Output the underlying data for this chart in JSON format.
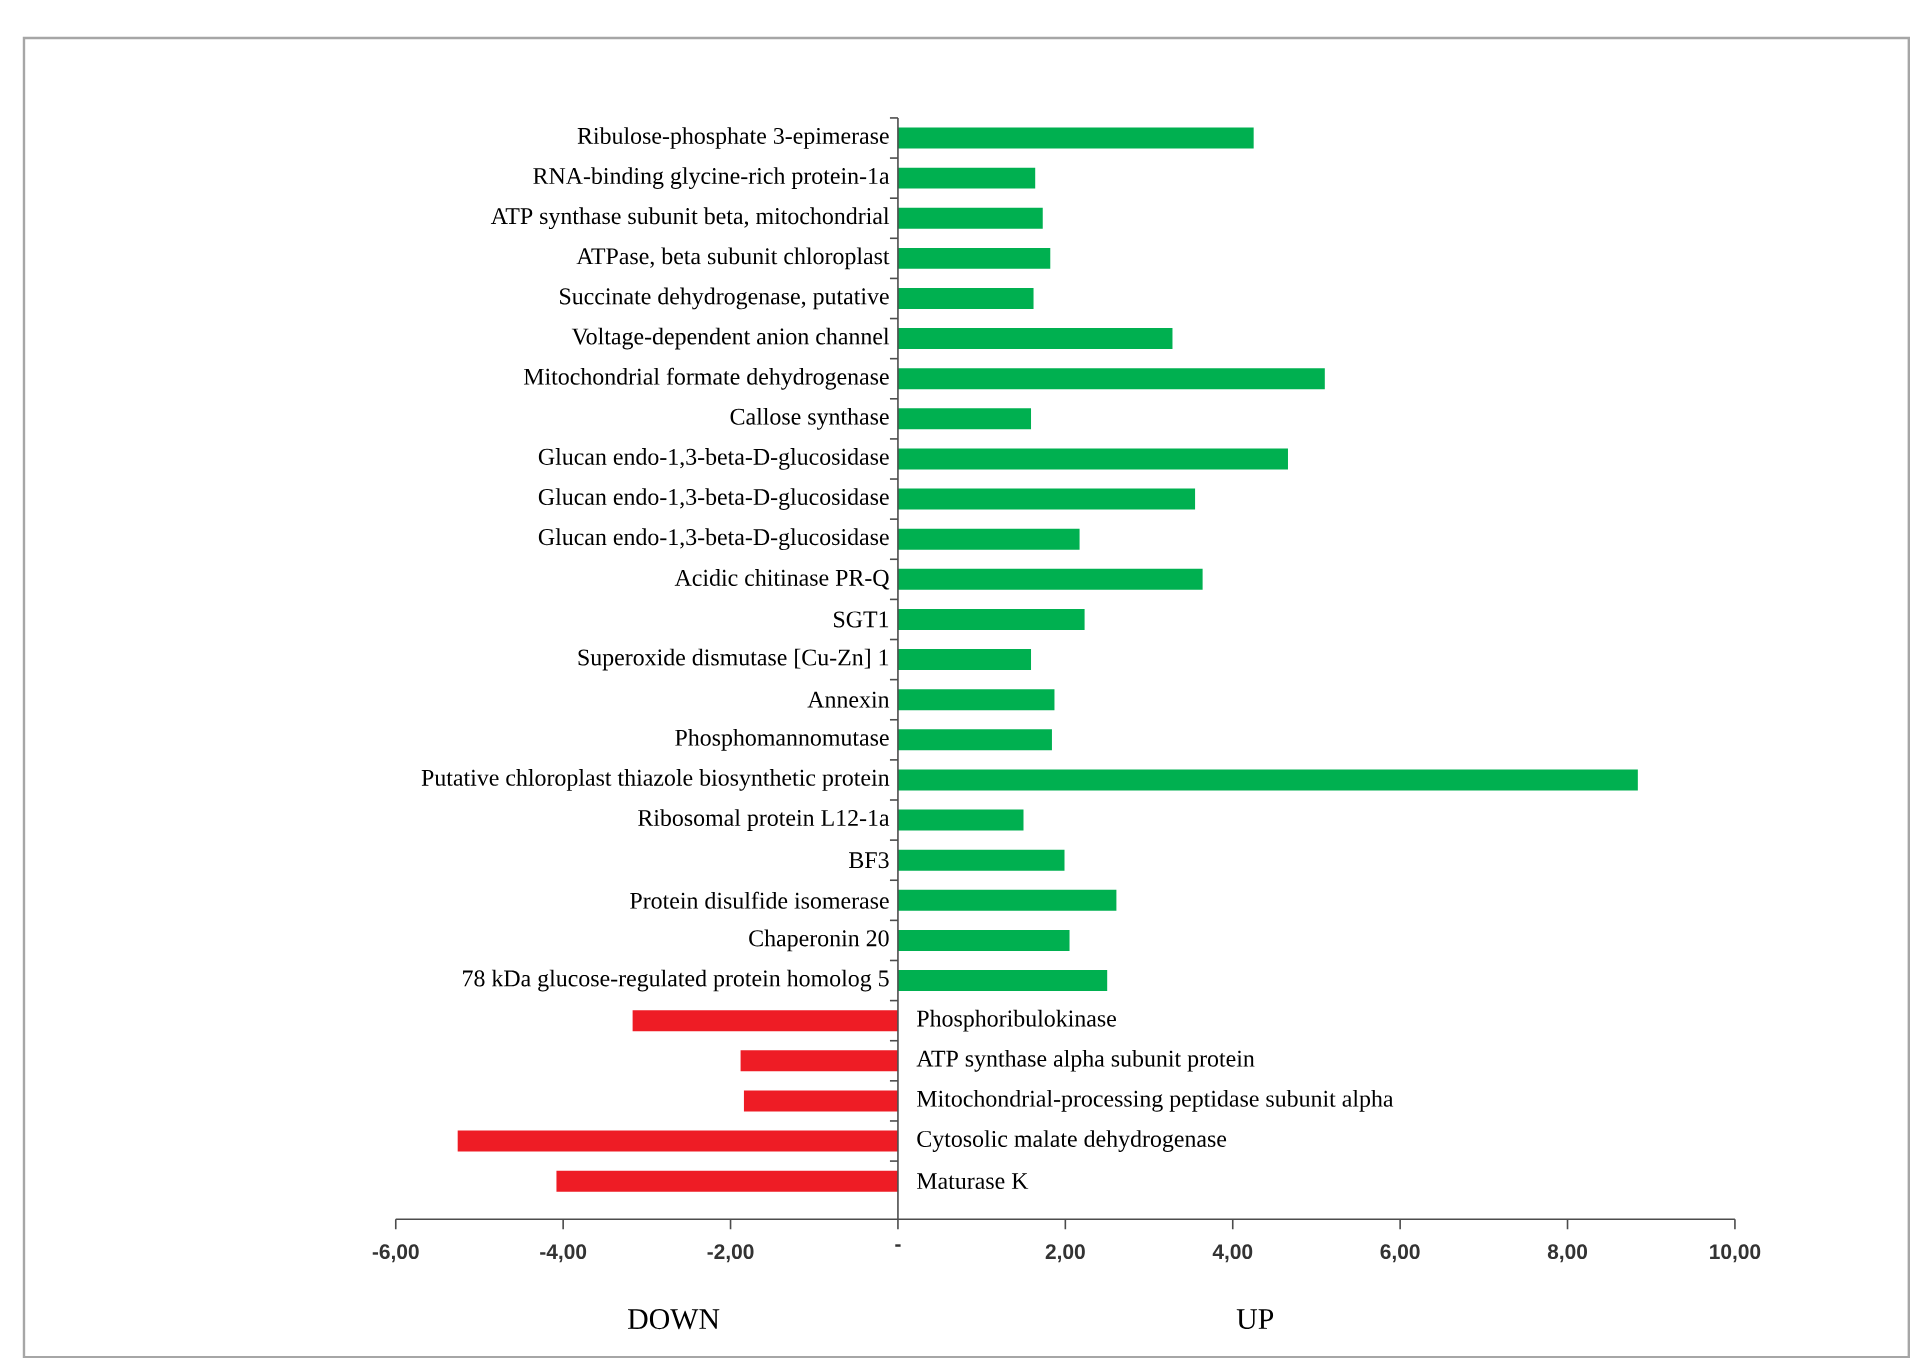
{
  "chart_data": {
    "type": "bar",
    "orientation": "horizontal",
    "categories": [
      "Ribulose-phosphate 3-epimerase",
      "RNA-binding glycine-rich protein-1a",
      "ATP synthase subunit beta, mitochondrial",
      "ATPase, beta subunit chloroplast",
      "Succinate dehydrogenase, putative",
      "Voltage-dependent anion channel",
      "Mitochondrial formate dehydrogenase",
      "Callose synthase",
      "Glucan endo-1,3-beta-D-glucosidase",
      "Glucan endo-1,3-beta-D-glucosidase",
      "Glucan endo-1,3-beta-D-glucosidase",
      "Acidic chitinase PR-Q",
      "SGT1",
      "Superoxide dismutase [Cu-Zn] 1",
      "Annexin",
      "Phosphomannomutase",
      "Putative chloroplast thiazole biosynthetic protein",
      "Ribosomal protein L12-1a",
      "BF3",
      "Protein disulfide isomerase",
      "Chaperonin 20",
      "78 kDa glucose-regulated protein homolog 5",
      "Phosphoribulokinase",
      "ATP synthase alpha subunit protein",
      "Mitochondrial-processing peptidase subunit alpha",
      "Cytosolic malate dehydrogenase",
      "Maturase K"
    ],
    "values": [
      4.25,
      1.64,
      1.73,
      1.82,
      1.62,
      3.28,
      5.1,
      1.59,
      4.66,
      3.55,
      2.17,
      3.64,
      2.23,
      1.59,
      1.87,
      1.84,
      8.84,
      1.5,
      1.99,
      2.61,
      2.05,
      2.5,
      -3.17,
      -1.88,
      -1.84,
      -5.26,
      -4.08
    ],
    "colors": [
      "#00b050",
      "#00b050",
      "#00b050",
      "#00b050",
      "#00b050",
      "#00b050",
      "#00b050",
      "#00b050",
      "#00b050",
      "#00b050",
      "#00b050",
      "#00b050",
      "#00b050",
      "#00b050",
      "#00b050",
      "#00b050",
      "#00b050",
      "#00b050",
      "#00b050",
      "#00b050",
      "#00b050",
      "#00b050",
      "#ee1c25",
      "#ee1c25",
      "#ee1c25",
      "#ee1c25",
      "#ee1c25"
    ],
    "xlim": [
      -6,
      10
    ],
    "xticks": [
      {
        "value": -6,
        "label": "-6,00"
      },
      {
        "value": -4,
        "label": "-4,00"
      },
      {
        "value": -2,
        "label": "-2,00"
      },
      {
        "value": 0,
        "label": "-"
      },
      {
        "value": 2,
        "label": "2,00"
      },
      {
        "value": 4,
        "label": "4,00"
      },
      {
        "value": 6,
        "label": "6,00"
      },
      {
        "value": 8,
        "label": "8,00"
      },
      {
        "value": 10,
        "label": "10,00"
      }
    ],
    "annotations": [
      "DOWN",
      "UP"
    ],
    "grid": false
  }
}
